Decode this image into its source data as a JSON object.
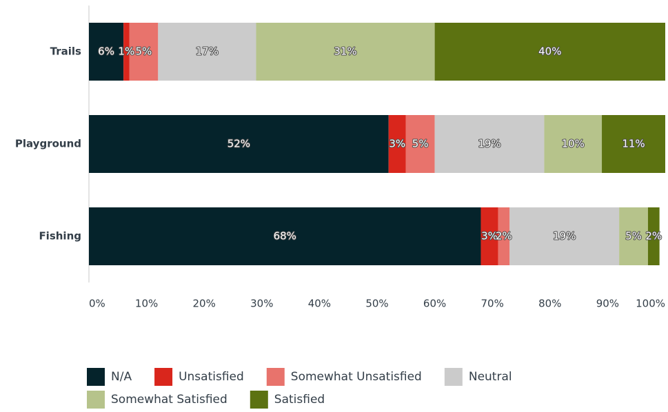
{
  "chart_data": {
    "type": "stacked-bar-horizontal",
    "categories": [
      "Trails",
      "Playground",
      "Fishing"
    ],
    "series": [
      {
        "name": "N/A",
        "color": "#05232b",
        "values": [
          6,
          52,
          68
        ],
        "value_labels": [
          "6%",
          "52%",
          "68%"
        ]
      },
      {
        "name": "Unsatisfied",
        "color": "#d9261c",
        "values": [
          1,
          3,
          3
        ],
        "value_labels": [
          "1%",
          "3%",
          "3%"
        ]
      },
      {
        "name": "Somewhat Unsatisfied",
        "color": "#e8736c",
        "values": [
          5,
          5,
          2
        ],
        "value_labels": [
          "5%",
          "5%",
          "2%"
        ]
      },
      {
        "name": "Neutral",
        "color": "#cbcbcb",
        "values": [
          17,
          19,
          19
        ],
        "value_labels": [
          "17%",
          "19%",
          "19%"
        ]
      },
      {
        "name": "Somewhat Satisfied",
        "color": "#b6c38b",
        "values": [
          31,
          10,
          5
        ],
        "value_labels": [
          "31%",
          "10%",
          "5%"
        ]
      },
      {
        "name": "Satisfied",
        "color": "#5c7211",
        "values": [
          40,
          11,
          2
        ],
        "value_labels": [
          "40%",
          "11%",
          "2%"
        ]
      }
    ],
    "xlim": [
      0,
      100
    ],
    "xticks": [
      {
        "value": 0,
        "label": "0%"
      },
      {
        "value": 10,
        "label": "10%"
      },
      {
        "value": 20,
        "label": "20%"
      },
      {
        "value": 30,
        "label": "30%"
      },
      {
        "value": 40,
        "label": "40%"
      },
      {
        "value": 50,
        "label": "50%"
      },
      {
        "value": 60,
        "label": "60%"
      },
      {
        "value": 70,
        "label": "70%"
      },
      {
        "value": 80,
        "label": "80%"
      },
      {
        "value": 90,
        "label": "90%"
      },
      {
        "value": 100,
        "label": "100%"
      }
    ],
    "legend": "bottom"
  }
}
